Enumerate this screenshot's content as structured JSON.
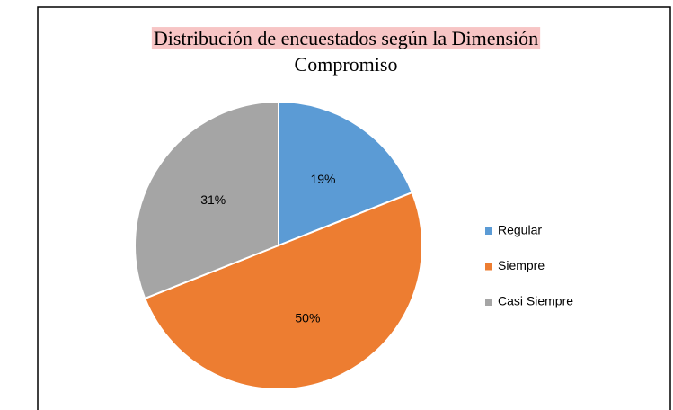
{
  "chart_data": {
    "type": "pie",
    "title": "Distribución de encuestados según la Dimensión",
    "subtitle": "Compromiso",
    "categories": [
      "Regular",
      "Siempre",
      "Casi Siempre"
    ],
    "values": [
      19,
      50,
      31
    ],
    "value_labels": [
      "19%",
      "50%",
      "31%"
    ],
    "colors": [
      "#5b9bd5",
      "#ed7d31",
      "#a5a5a5"
    ],
    "legend": "right"
  }
}
